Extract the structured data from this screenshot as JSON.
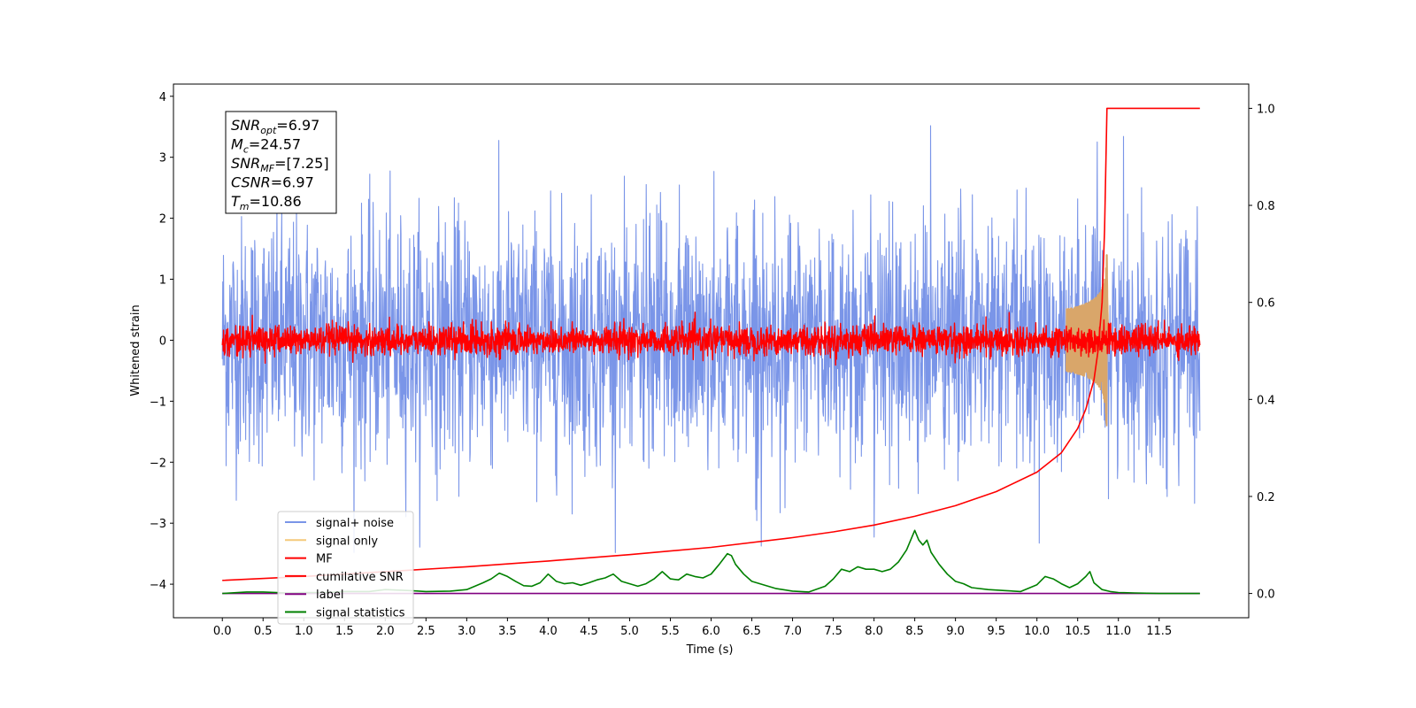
{
  "chart_data": {
    "type": "line",
    "title": "",
    "xlabel": "Time (s)",
    "ylabel": "Whitened strain",
    "xlim": [
      -0.6,
      12.6
    ],
    "ylim": [
      -4.55,
      4.2
    ],
    "y2lim": [
      -0.05,
      1.05
    ],
    "x_ticks": [
      0.0,
      0.5,
      1.0,
      1.5,
      2.0,
      2.5,
      3.0,
      3.5,
      4.0,
      4.5,
      5.0,
      5.5,
      6.0,
      6.5,
      7.0,
      7.5,
      8.0,
      8.5,
      9.0,
      9.5,
      10.0,
      10.5,
      11.0,
      11.5
    ],
    "x_tick_labels": [
      "0.0",
      "0.5",
      "1.0",
      "1.5",
      "2.0",
      "2.5",
      "3.0",
      "3.5",
      "4.0",
      "4.5",
      "5.0",
      "5.5",
      "6.0",
      "6.5",
      "7.0",
      "7.5",
      "8.0",
      "8.5",
      "9.0",
      "9.5",
      "10.0",
      "10.5",
      "11.0",
      "11.5"
    ],
    "y_ticks": [
      -4,
      -3,
      -2,
      -1,
      0,
      1,
      2,
      3,
      4
    ],
    "y_tick_labels": [
      "−4",
      "−3",
      "−2",
      "−1",
      "0",
      "1",
      "2",
      "3",
      "4"
    ],
    "y2_ticks": [
      0.0,
      0.2,
      0.4,
      0.6,
      0.8,
      1.0
    ],
    "y2_tick_labels": [
      "0.0",
      "0.2",
      "0.4",
      "0.6",
      "0.8",
      "1.0"
    ],
    "grid": false,
    "legend_position": "lower-left",
    "series": [
      {
        "name": "signal+ noise",
        "color": "#7a95e8",
        "axis": "left",
        "style": "noise",
        "t_range": [
          0,
          12
        ],
        "amplitude_sigma": 1.0,
        "spike_max": 3.7
      },
      {
        "name": "signal only",
        "color": "#f5c97a",
        "axis": "left",
        "style": "chirp",
        "merger_time": 10.86,
        "peak_amplitude": 1.3
      },
      {
        "name": "MF",
        "color": "#ff0000",
        "axis": "left",
        "style": "noise",
        "t_range": [
          0,
          12
        ],
        "amplitude_sigma": 0.12,
        "spike_max": 0.6
      },
      {
        "name": "cumilative SNR",
        "color": "#ff0000",
        "axis": "right",
        "x": [
          0.0,
          1.0,
          2.0,
          3.0,
          4.0,
          5.0,
          6.0,
          7.0,
          7.5,
          8.0,
          8.5,
          9.0,
          9.5,
          10.0,
          10.3,
          10.5,
          10.6,
          10.7,
          10.75,
          10.8,
          10.83,
          10.86,
          11.0,
          11.5,
          12.0
        ],
        "y": [
          0.027,
          0.035,
          0.045,
          0.055,
          0.067,
          0.08,
          0.095,
          0.115,
          0.127,
          0.141,
          0.159,
          0.181,
          0.21,
          0.25,
          0.29,
          0.34,
          0.38,
          0.44,
          0.5,
          0.6,
          0.75,
          1.0,
          1.0,
          1.0,
          1.0
        ]
      },
      {
        "name": "label",
        "color": "#800080",
        "axis": "right",
        "x": [
          0.0,
          12.0
        ],
        "y": [
          0.0,
          0.0
        ]
      },
      {
        "name": "signal statistics",
        "color": "#008000",
        "axis": "right",
        "x": [
          0.0,
          0.3,
          0.5,
          0.8,
          1.0,
          1.3,
          1.5,
          1.8,
          2.0,
          2.3,
          2.5,
          2.8,
          3.0,
          3.1,
          3.2,
          3.3,
          3.4,
          3.5,
          3.6,
          3.7,
          3.8,
          3.9,
          4.0,
          4.1,
          4.2,
          4.3,
          4.4,
          4.5,
          4.6,
          4.7,
          4.8,
          4.9,
          5.0,
          5.1,
          5.2,
          5.3,
          5.4,
          5.5,
          5.6,
          5.7,
          5.8,
          5.9,
          6.0,
          6.1,
          6.2,
          6.25,
          6.3,
          6.4,
          6.5,
          6.6,
          6.7,
          6.8,
          7.0,
          7.2,
          7.4,
          7.5,
          7.6,
          7.7,
          7.8,
          7.9,
          8.0,
          8.1,
          8.2,
          8.3,
          8.4,
          8.5,
          8.55,
          8.6,
          8.65,
          8.7,
          8.8,
          8.9,
          9.0,
          9.1,
          9.2,
          9.4,
          9.6,
          9.8,
          10.0,
          10.1,
          10.2,
          10.3,
          10.4,
          10.5,
          10.6,
          10.65,
          10.7,
          10.8,
          10.9,
          11.0,
          11.2,
          11.5,
          11.8,
          12.0
        ],
        "y": [
          0.0,
          0.003,
          0.003,
          0.001,
          0.002,
          0.002,
          0.004,
          0.004,
          0.008,
          0.006,
          0.004,
          0.005,
          0.008,
          0.015,
          0.022,
          0.03,
          0.042,
          0.035,
          0.025,
          0.016,
          0.015,
          0.022,
          0.04,
          0.025,
          0.02,
          0.022,
          0.017,
          0.022,
          0.028,
          0.032,
          0.04,
          0.025,
          0.02,
          0.015,
          0.02,
          0.03,
          0.045,
          0.03,
          0.028,
          0.04,
          0.035,
          0.032,
          0.04,
          0.06,
          0.082,
          0.078,
          0.06,
          0.04,
          0.025,
          0.02,
          0.015,
          0.01,
          0.005,
          0.003,
          0.015,
          0.03,
          0.05,
          0.045,
          0.055,
          0.05,
          0.05,
          0.045,
          0.05,
          0.065,
          0.09,
          0.13,
          0.11,
          0.1,
          0.11,
          0.085,
          0.06,
          0.04,
          0.025,
          0.02,
          0.012,
          0.008,
          0.006,
          0.004,
          0.018,
          0.035,
          0.03,
          0.02,
          0.012,
          0.02,
          0.035,
          0.045,
          0.022,
          0.008,
          0.004,
          0.002,
          0.001,
          0.0,
          0.0,
          0.0
        ]
      }
    ]
  },
  "annotation": {
    "lines": [
      {
        "var": "SNR",
        "sub": "opt",
        "value": "=6.97"
      },
      {
        "var": "M",
        "sub": "c",
        "value": "=24.57"
      },
      {
        "var": "SNR",
        "sub": "MF",
        "value": "=[7.25]"
      },
      {
        "var": "CSNR",
        "sub": "",
        "value": "=6.97"
      },
      {
        "var": "T",
        "sub": "m",
        "value": "=10.86"
      }
    ]
  }
}
